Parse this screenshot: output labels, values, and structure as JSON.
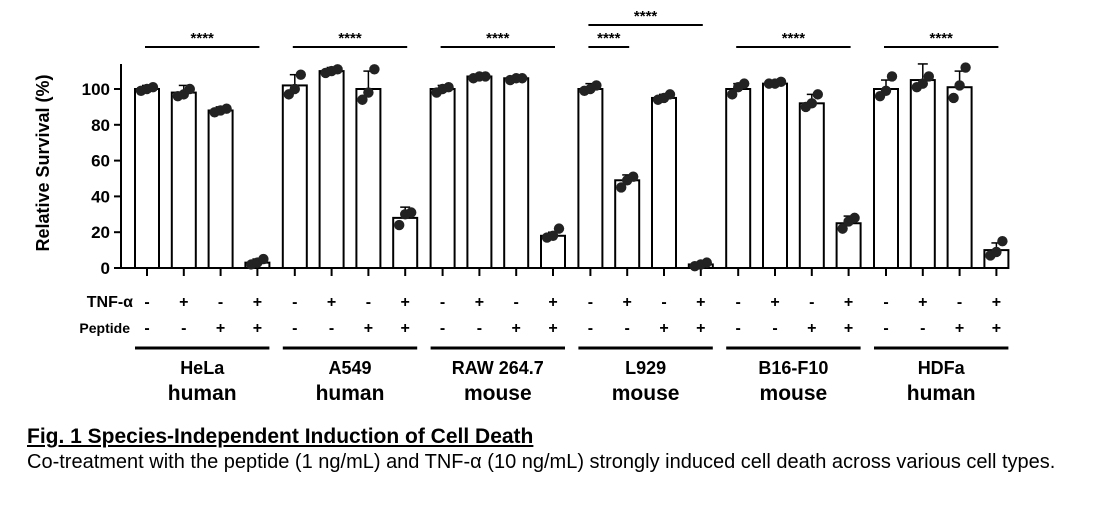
{
  "chart_data": {
    "type": "bar",
    "ylabel": "Relative Survival (%)",
    "yticks": [
      0,
      20,
      40,
      60,
      80,
      100
    ],
    "ylim": [
      0,
      112
    ],
    "row_labels": {
      "tnf": "TNF-α",
      "peptide": "Peptide"
    },
    "conditions": [
      {
        "tnf": "-",
        "peptide": "-"
      },
      {
        "tnf": "+",
        "peptide": "-"
      },
      {
        "tnf": "-",
        "peptide": "+"
      },
      {
        "tnf": "+",
        "peptide": "+"
      }
    ],
    "groups": [
      {
        "cell_line": "HeLa",
        "species": "human",
        "values": [
          100,
          98,
          88,
          3
        ],
        "errors": [
          2,
          4,
          2,
          2
        ],
        "points": [
          [
            99,
            100,
            101
          ],
          [
            96,
            97,
            100
          ],
          [
            87,
            88,
            89
          ],
          [
            2,
            3,
            5
          ]
        ],
        "significance": [
          {
            "from": 0,
            "to": 3,
            "label": "****",
            "level": 1
          }
        ]
      },
      {
        "cell_line": "A549",
        "species": "human",
        "values": [
          102,
          110,
          100,
          28
        ],
        "errors": [
          6,
          2,
          10,
          6
        ],
        "points": [
          [
            97,
            100,
            108
          ],
          [
            109,
            110,
            111
          ],
          [
            94,
            98,
            111
          ],
          [
            24,
            30,
            31
          ]
        ],
        "significance": [
          {
            "from": 0,
            "to": 3,
            "label": "****",
            "level": 1
          }
        ]
      },
      {
        "cell_line": "RAW 264.7",
        "species": "mouse",
        "values": [
          100,
          107,
          106,
          18
        ],
        "errors": [
          2,
          1,
          1,
          2
        ],
        "points": [
          [
            98,
            100,
            101
          ],
          [
            106,
            107,
            107
          ],
          [
            105,
            106,
            106
          ],
          [
            17,
            18,
            22
          ]
        ],
        "significance": [
          {
            "from": 0,
            "to": 3,
            "label": "****",
            "level": 1
          }
        ]
      },
      {
        "cell_line": "L929",
        "species": "mouse",
        "values": [
          100,
          49,
          95,
          2
        ],
        "errors": [
          3,
          3,
          2,
          1
        ],
        "points": [
          [
            99,
            100,
            102
          ],
          [
            45,
            49,
            51
          ],
          [
            94,
            95,
            97
          ],
          [
            1,
            2,
            3
          ]
        ],
        "significance": [
          {
            "from": 0,
            "to": 1,
            "label": "****",
            "level": 1
          },
          {
            "from": 0,
            "to": 3,
            "label": "****",
            "level": 2
          }
        ]
      },
      {
        "cell_line": "B16-F10",
        "species": "mouse",
        "values": [
          100,
          103,
          92,
          25
        ],
        "errors": [
          3,
          1,
          5,
          4
        ],
        "points": [
          [
            97,
            101,
            103
          ],
          [
            103,
            103,
            104
          ],
          [
            90,
            92,
            97
          ],
          [
            22,
            26,
            28
          ]
        ],
        "significance": [
          {
            "from": 0,
            "to": 3,
            "label": "****",
            "level": 1
          }
        ]
      },
      {
        "cell_line": "HDFa",
        "species": "human",
        "values": [
          100,
          105,
          101,
          10
        ],
        "errors": [
          5,
          9,
          9,
          4
        ],
        "points": [
          [
            96,
            99,
            107
          ],
          [
            101,
            103,
            107
          ],
          [
            95,
            102,
            112
          ],
          [
            7,
            9,
            15
          ]
        ],
        "significance": [
          {
            "from": 0,
            "to": 3,
            "label": "****",
            "level": 1
          }
        ]
      }
    ]
  },
  "caption": {
    "title": "Fig. 1 Species-Independent Induction of Cell Death",
    "body": "Co-treatment with the peptide (1 ng/mL) and TNF-α (10 ng/mL) strongly induced cell death across various cell types."
  }
}
